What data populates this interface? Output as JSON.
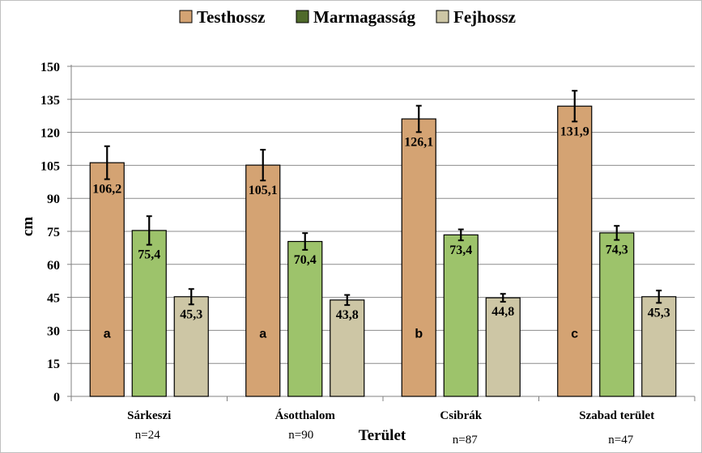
{
  "chart_data": {
    "type": "bar",
    "title": "",
    "xlabel": "Terület",
    "ylabel": "cm",
    "ylim": [
      0,
      150
    ],
    "yticks": [
      0,
      15,
      30,
      45,
      60,
      75,
      90,
      105,
      120,
      135,
      150
    ],
    "grid": true,
    "legend": "top",
    "categories": [
      "Sárkeszi",
      "Ásotthalom",
      "Csibrák",
      "Szabad terület"
    ],
    "sample_sizes": [
      "n=24",
      "n=90",
      "n=87",
      "n=47"
    ],
    "group_letters": [
      "a",
      "a",
      "b",
      "c"
    ],
    "series": [
      {
        "name": "Testhossz",
        "color": "#d4a373",
        "values": [
          106.2,
          105.1,
          126.1,
          131.9
        ],
        "value_labels": [
          "106,2",
          "105,1",
          "126,1",
          "131,9"
        ],
        "error": [
          7.5,
          7.0,
          6.0,
          7.0
        ]
      },
      {
        "name": "Marmagasság",
        "color": "#9dc36b",
        "legend_color": "#4f6a2a",
        "values": [
          75.4,
          70.4,
          73.4,
          74.3
        ],
        "value_labels": [
          "75,4",
          "70,4",
          "73,4",
          "74,3"
        ],
        "error": [
          6.5,
          3.8,
          2.5,
          3.2
        ]
      },
      {
        "name": "Fejhossz",
        "color": "#cdc6a5",
        "values": [
          45.3,
          43.8,
          44.8,
          45.3
        ],
        "value_labels": [
          "45,3",
          "43,8",
          "44,8",
          "45,3"
        ],
        "error": [
          3.5,
          2.3,
          1.8,
          2.8
        ]
      }
    ]
  }
}
